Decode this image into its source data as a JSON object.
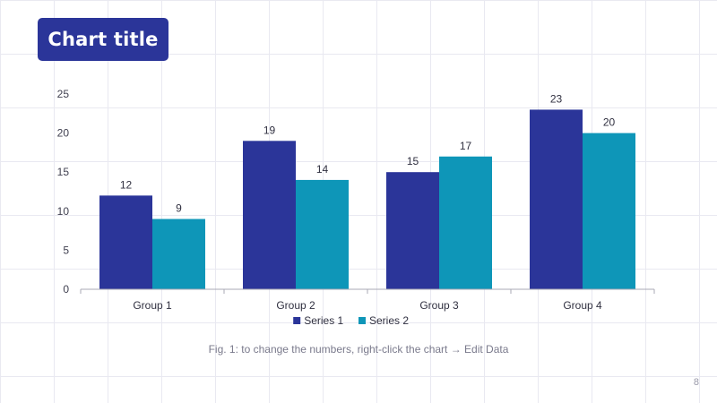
{
  "slide": {
    "title": "Chart title",
    "caption": "Fig. 1: to change the numbers, right-click the chart → Edit Data",
    "page_number": "8"
  },
  "chart_data": {
    "type": "bar",
    "categories": [
      "Group 1",
      "Group 2",
      "Group 3",
      "Group 4"
    ],
    "series": [
      {
        "name": "Series 1",
        "values": [
          12,
          19,
          15,
          23
        ],
        "color": "#2b3599"
      },
      {
        "name": "Series 2",
        "values": [
          9,
          14,
          17,
          20
        ],
        "color": "#0e96b8"
      }
    ],
    "y_ticks": [
      0,
      5,
      10,
      15,
      20,
      25
    ],
    "ylim": [
      0,
      25
    ],
    "data_labels": true,
    "legend": "bottom",
    "grid": false
  }
}
